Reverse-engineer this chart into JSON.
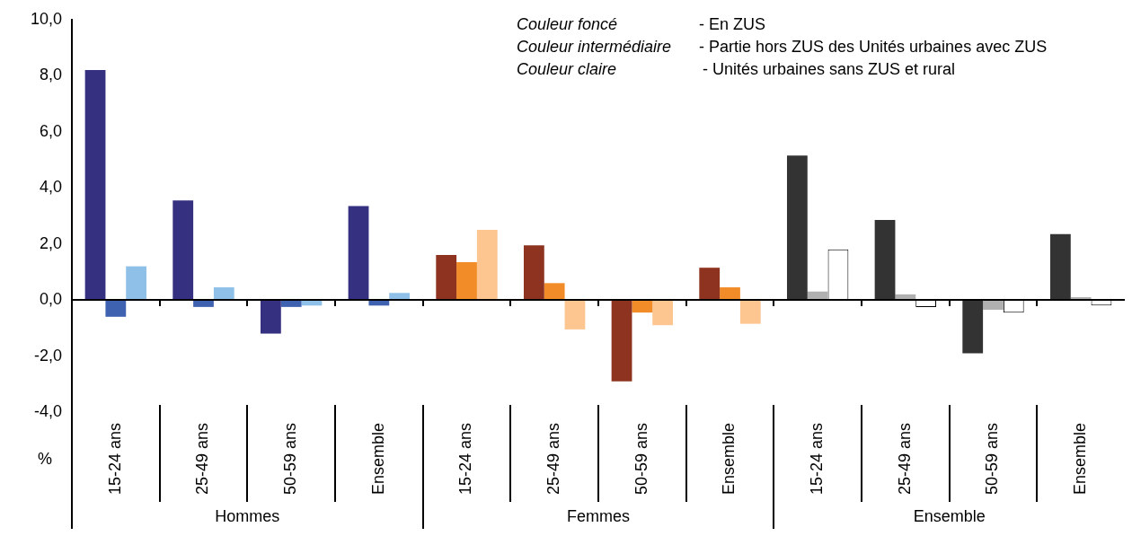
{
  "chart_data": {
    "type": "bar",
    "ylabel": "%",
    "categories": [
      "15-24 ans",
      "25-49 ans",
      "50-59 ans",
      "Ensemble",
      "15-24 ans",
      "25-49 ans",
      "50-59 ans",
      "Ensemble",
      "15-24 ans",
      "25-49 ans",
      "50-59 ans",
      "Ensemble"
    ],
    "series": [
      {
        "colors": [
          "#35307f",
          "#35307f",
          "#35307f",
          "#35307f",
          "#8e3320",
          "#8e3320",
          "#8e3320",
          "#8e3320",
          "#333333",
          "#333333",
          "#333333",
          "#333333"
        ],
        "values": [
          8.2,
          3.55,
          -1.2,
          3.35,
          1.6,
          1.95,
          -2.9,
          1.15,
          5.15,
          2.85,
          -1.9,
          2.35
        ]
      },
      {
        "colors": [
          "#3f62b0",
          "#3f62b0",
          "#3f62b0",
          "#3f62b0",
          "#f28c28",
          "#f28c28",
          "#f28c28",
          "#f28c28",
          "#b0b0b0",
          "#b0b0b0",
          "#b0b0b0",
          "#b0b0b0"
        ],
        "values": [
          -0.6,
          -0.25,
          -0.25,
          -0.2,
          1.35,
          0.6,
          -0.45,
          0.45,
          0.3,
          0.2,
          -0.35,
          0.1
        ]
      },
      {
        "colors": [
          "#8fc0e8",
          "#8fc0e8",
          "#8fc0e8",
          "#8fc0e8",
          "#fdc590",
          "#fdc590",
          "#fdc590",
          "#fdc590",
          "#ffffff",
          "#ffffff",
          "#ffffff",
          "#ffffff"
        ],
        "values": [
          1.2,
          0.45,
          -0.2,
          0.25,
          2.5,
          -1.05,
          -0.9,
          -0.85,
          1.8,
          -0.25,
          -0.45,
          -0.2
        ]
      }
    ],
    "ylim": [
      -4,
      10
    ],
    "yticks": [
      {
        "value": -4,
        "label": "-4,0"
      },
      {
        "value": -2,
        "label": "-2,0"
      },
      {
        "value": 0,
        "label": "0,0"
      },
      {
        "value": 2,
        "label": "2,0"
      },
      {
        "value": 4,
        "label": "4,0"
      },
      {
        "value": 6,
        "label": "6,0"
      },
      {
        "value": 8,
        "label": "8,0"
      },
      {
        "value": 10,
        "label": "10,0"
      }
    ],
    "grid": false,
    "legend": false,
    "ref_lines": [
      {
        "axis": "y",
        "value": 0,
        "color": "#000000"
      }
    ],
    "annotations": [
      "Couleur foncé",
      "- En ZUS",
      "Couleur intermédiaire",
      "- Partie hors ZUS des Unités urbaines avec ZUS",
      "Couleur claire",
      "- Unités urbaines sans ZUS et rural",
      "Hommes",
      "Femmes",
      "Ensemble"
    ]
  }
}
